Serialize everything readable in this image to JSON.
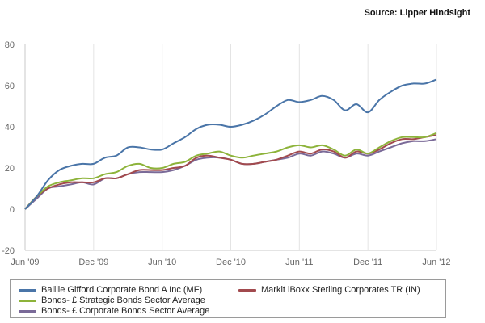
{
  "source_text": "Source: Lipper Hindsight",
  "chart_data": {
    "type": "line",
    "x": [
      "2009-06",
      "2009-07",
      "2009-08",
      "2009-09",
      "2009-10",
      "2009-11",
      "2009-12",
      "2010-01",
      "2010-02",
      "2010-03",
      "2010-04",
      "2010-05",
      "2010-06",
      "2010-07",
      "2010-08",
      "2010-09",
      "2010-10",
      "2010-11",
      "2010-12",
      "2011-01",
      "2011-02",
      "2011-03",
      "2011-04",
      "2011-05",
      "2011-06",
      "2011-07",
      "2011-08",
      "2011-09",
      "2011-10",
      "2011-11",
      "2011-12",
      "2012-01",
      "2012-02",
      "2012-03",
      "2012-04",
      "2012-05",
      "2012-06"
    ],
    "x_tick_labels": [
      "Jun '09",
      "Dec '09",
      "Jun '10",
      "Dec '10",
      "Jun '11",
      "Dec '11",
      "Jun '12"
    ],
    "y_ticks": [
      -20,
      0,
      20,
      40,
      60,
      80
    ],
    "ylim": [
      -20,
      80
    ],
    "grid": "vertical",
    "legend_position": "bottom",
    "series": [
      {
        "name": "Baillie Gifford Corporate Bond A Inc (MF)",
        "color": "#4a75a8",
        "values": [
          0,
          6,
          14,
          19,
          21,
          22,
          22,
          25,
          26,
          30,
          30,
          29,
          29,
          32,
          35,
          39,
          41,
          41,
          40,
          41,
          43,
          46,
          50,
          53,
          52,
          53,
          55,
          53,
          48,
          51,
          47,
          53,
          57,
          60,
          61,
          61,
          63
        ]
      },
      {
        "name": "Markit iBoxx Sterling Corporates TR (IN)",
        "color": "#a24a4e",
        "values": [
          0,
          6,
          10,
          12,
          13,
          13,
          13,
          15,
          15,
          17,
          19,
          19,
          19,
          20,
          21,
          25,
          26,
          25,
          24,
          22,
          22,
          23,
          24,
          26,
          28,
          27,
          29,
          28,
          25,
          28,
          27,
          29,
          32,
          34,
          34,
          35,
          36
        ]
      },
      {
        "name": "Bonds- £ Strategic Bonds Sector Average",
        "color": "#8db33a",
        "values": [
          0,
          6,
          11,
          13,
          14,
          15,
          15,
          17,
          18,
          21,
          22,
          20,
          20,
          22,
          23,
          26,
          27,
          28,
          26,
          25,
          26,
          27,
          28,
          30,
          31,
          30,
          31,
          29,
          26,
          29,
          27,
          30,
          33,
          35,
          35,
          35,
          37
        ]
      },
      {
        "name": "Bonds- £ Corporate Bonds Sector Average",
        "color": "#7a6a98",
        "values": [
          0,
          5,
          10,
          11,
          12,
          13,
          12,
          15,
          15,
          17,
          18,
          18,
          18,
          19,
          21,
          24,
          25,
          25,
          24,
          22,
          22,
          23,
          24,
          25,
          27,
          26,
          28,
          27,
          25,
          27,
          26,
          28,
          30,
          32,
          33,
          33,
          34
        ]
      }
    ]
  }
}
